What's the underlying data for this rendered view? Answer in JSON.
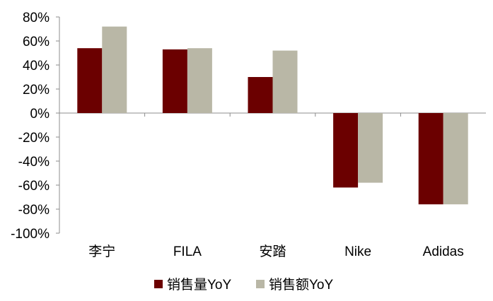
{
  "chart_data": {
    "type": "bar",
    "categories": [
      "李宁",
      "FILA",
      "安踏",
      "Nike",
      "Adidas"
    ],
    "series": [
      {
        "name": "销售量YoY",
        "color": "#6b0000",
        "values": [
          54,
          53,
          30,
          -62,
          -76
        ]
      },
      {
        "name": "销售额YoY",
        "color": "#b9b7a6",
        "values": [
          72,
          54,
          52,
          -58,
          -76
        ]
      }
    ],
    "ylim": [
      -100,
      80
    ],
    "yticks": [
      80,
      60,
      40,
      20,
      0,
      -20,
      -40,
      -60,
      -80,
      -100
    ],
    "ytick_labels": [
      "80%",
      "60%",
      "40%",
      "20%",
      "0%",
      "-20%",
      "-40%",
      "-60%",
      "-80%",
      "-100%"
    ],
    "legend_position": "bottom",
    "grid": false
  }
}
